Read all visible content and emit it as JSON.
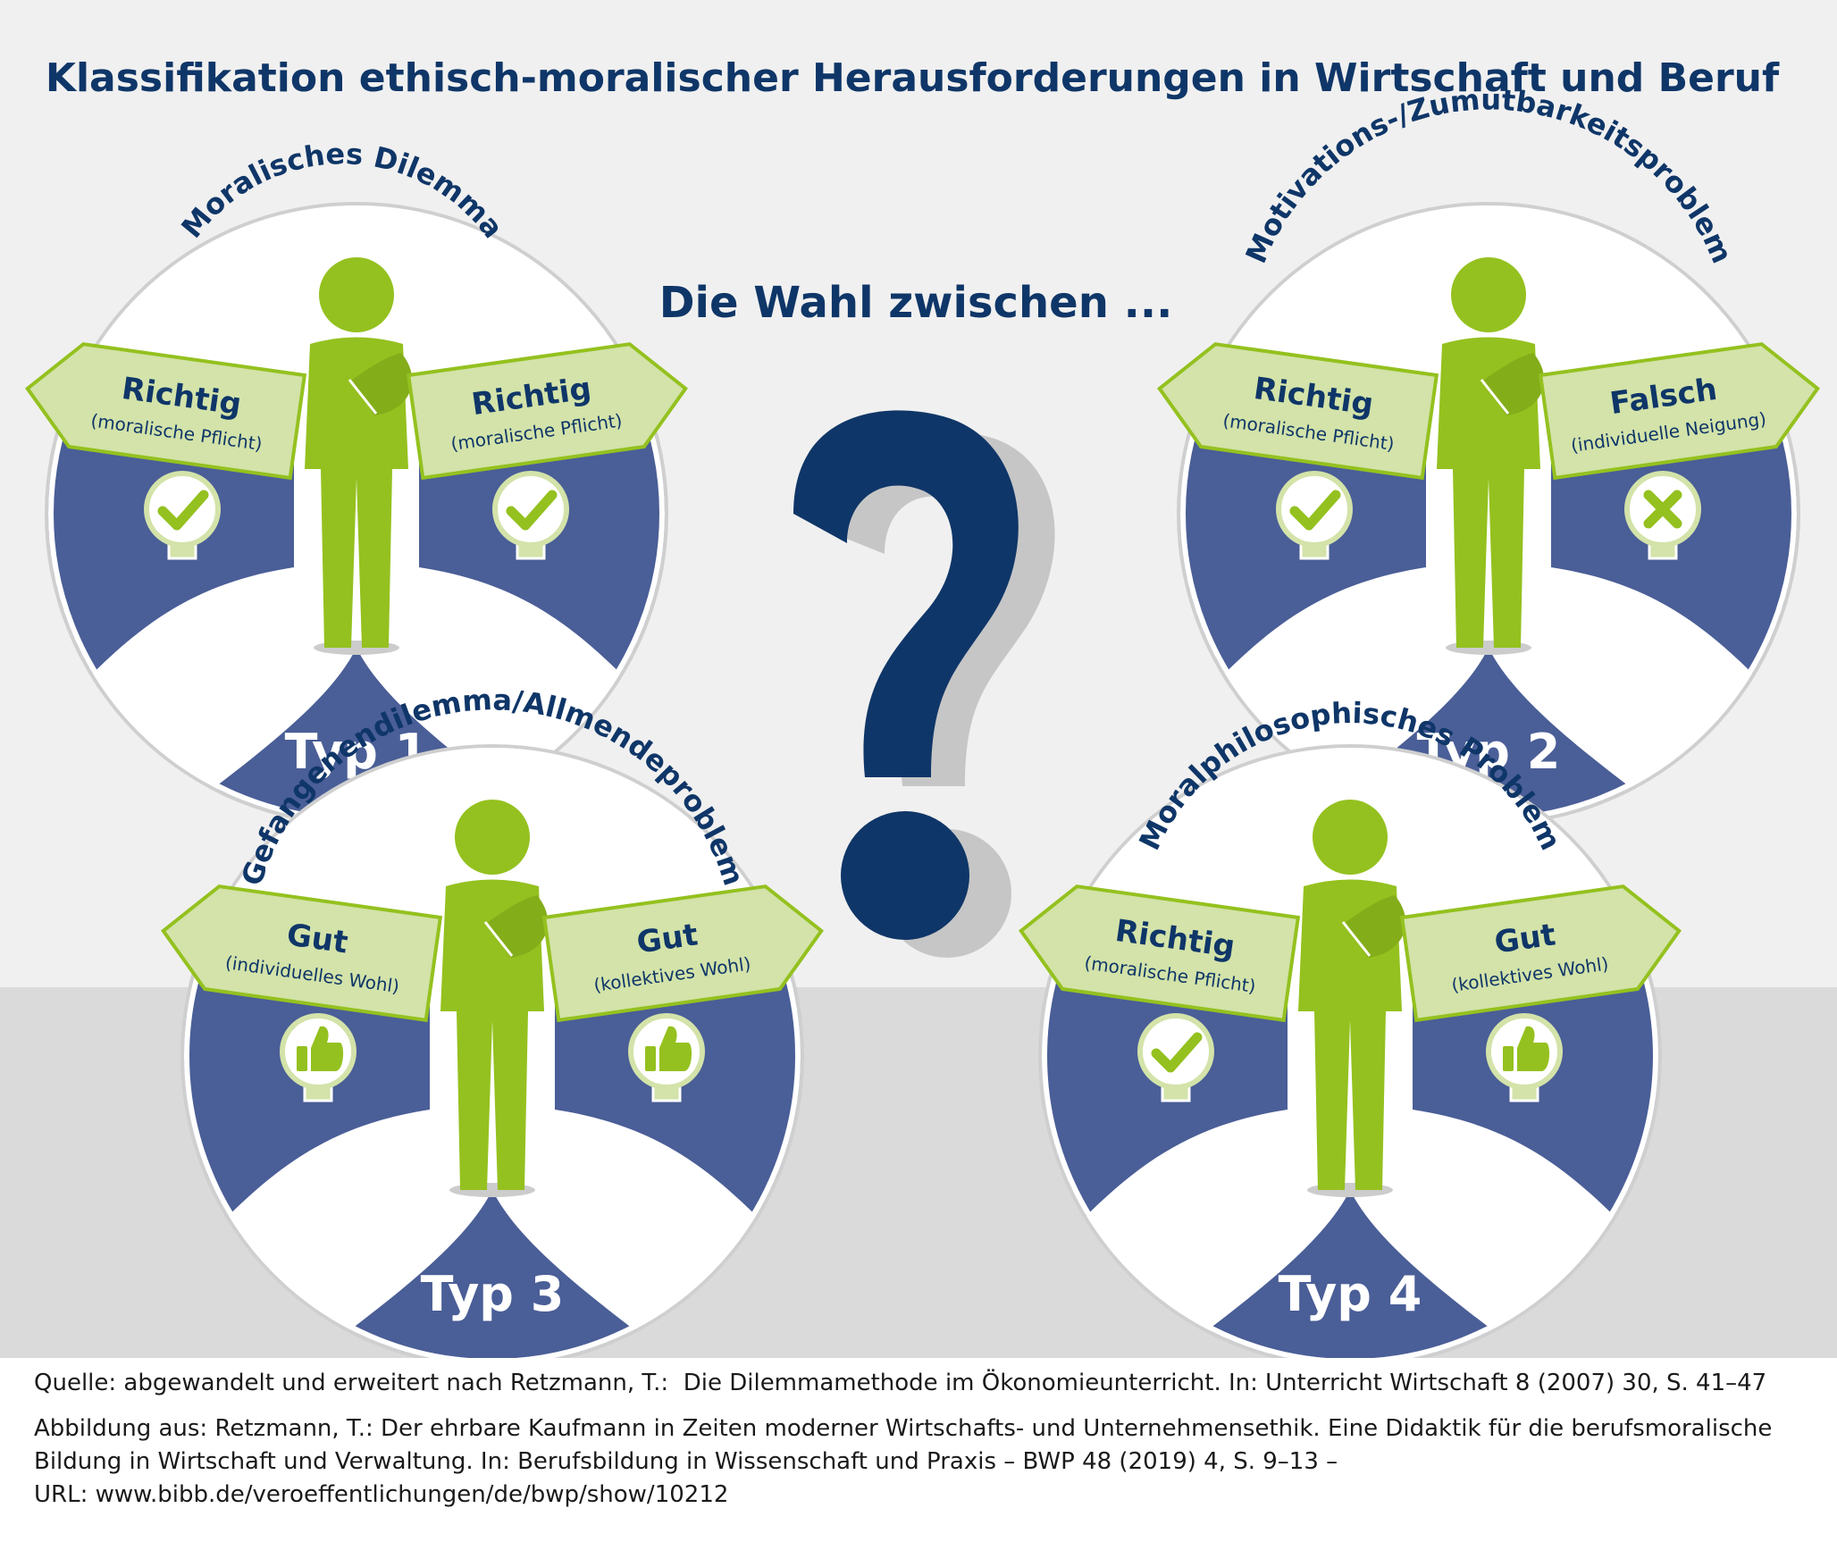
{
  "title": "Klassifikation ethisch-moralischer Herausforderungen in Wirtschaft und Beruf",
  "center_text": "Die Wahl zwischen ...",
  "center_symbol": "?",
  "colors": {
    "navy": "#0f3668",
    "blue": "#4a5e97",
    "green": "#94c11f",
    "light_green": "#d3e3a9",
    "bg_top": "#f0f0f0",
    "bg_bottom": "#dadada"
  },
  "types": [
    {
      "label": "Typ 1",
      "arc_title": "Moralisches Dilemma",
      "left_sign": {
        "title": "Richtig",
        "subtitle": "(moralische Pflicht)",
        "icon": "check-icon"
      },
      "right_sign": {
        "title": "Richtig",
        "subtitle": "(moralische Pflicht)",
        "icon": "check-icon"
      }
    },
    {
      "label": "Typ 2",
      "arc_title": "Motivations-/Zumutbarkeitsproblem",
      "left_sign": {
        "title": "Richtig",
        "subtitle": "(moralische Pflicht)",
        "icon": "check-icon"
      },
      "right_sign": {
        "title": "Falsch",
        "subtitle": "(individuelle Neigung)",
        "icon": "cross-icon"
      }
    },
    {
      "label": "Typ 3",
      "arc_title": "Gefangenendilemma/Allmendeproblem",
      "left_sign": {
        "title": "Gut",
        "subtitle": "(individuelles Wohl)",
        "icon": "thumbs-up-icon"
      },
      "right_sign": {
        "title": "Gut",
        "subtitle": "(kollektives Wohl)",
        "icon": "thumbs-up-icon"
      }
    },
    {
      "label": "Typ 4",
      "arc_title": "Moralphilosophisches Problem",
      "left_sign": {
        "title": "Richtig",
        "subtitle": "(moralische Pflicht)",
        "icon": "check-icon"
      },
      "right_sign": {
        "title": "Gut",
        "subtitle": "(kollektives Wohl)",
        "icon": "thumbs-up-icon"
      }
    }
  ],
  "footer": {
    "source": "Quelle: abgewandelt und erweitert nach Retzmann, T.:  Die Dilemmamethode im Ökonomieunterricht. In: Unterricht Wirtschaft 8 (2007) 30, S. 41–47",
    "figure_ref_1": "Abbildung aus: Retzmann, T.: Der ehrbare Kaufmann in Zeiten moderner Wirtschafts- und Unternehmensethik. Eine Didaktik für die berufsmoralische",
    "figure_ref_2": "Bildung in Wirtschaft und Verwaltung. In: Berufsbildung in Wissenschaft und Praxis – BWP 48 (2019) 4, S. 9–13 –",
    "url": "URL: www.bibb.de/veroeffentlichungen/de/bwp/show/10212"
  }
}
